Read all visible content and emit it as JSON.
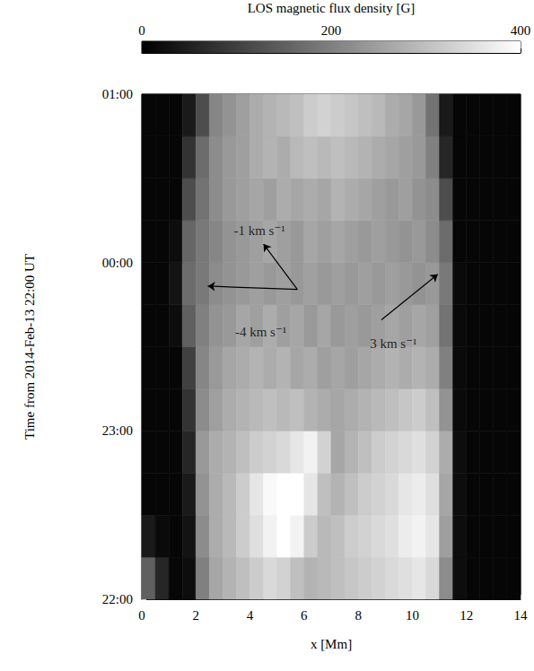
{
  "chart_data": {
    "type": "heatmap",
    "x_label": "x [Mm]",
    "y_label": "Time from 2014-Feb-13 22:00 UT",
    "xlim": [
      0,
      14
    ],
    "xticks": [
      0,
      2,
      4,
      6,
      8,
      10,
      12,
      14
    ],
    "ylim": [
      0,
      3
    ],
    "yticks": [
      {
        "value": 0,
        "label": "22:00"
      },
      {
        "value": 1,
        "label": "23:00"
      },
      {
        "value": 2,
        "label": "00:00"
      },
      {
        "value": 3,
        "label": "01:00"
      }
    ],
    "x_edges": [
      0,
      0.5,
      1,
      1.5,
      2,
      2.5,
      3,
      3.5,
      4,
      4.5,
      5,
      5.5,
      6,
      6.5,
      7,
      7.5,
      8,
      8.5,
      9,
      9.5,
      10,
      10.5,
      11,
      11.5,
      12,
      12.5,
      13,
      13.5,
      14
    ],
    "y_edges": [
      0,
      0.25,
      0.5,
      0.75,
      1,
      1.25,
      1.5,
      1.75,
      2,
      2.25,
      2.5,
      2.75,
      3
    ],
    "values": [
      [
        150,
        60,
        10,
        20,
        200,
        260,
        280,
        300,
        320,
        340,
        330,
        300,
        280,
        290,
        300,
        310,
        320,
        330,
        340,
        350,
        360,
        340,
        220,
        20,
        10,
        10,
        10,
        10
      ],
      [
        40,
        15,
        10,
        30,
        220,
        270,
        290,
        320,
        350,
        380,
        400,
        380,
        320,
        290,
        300,
        320,
        330,
        340,
        350,
        370,
        380,
        360,
        250,
        20,
        10,
        10,
        10,
        10
      ],
      [
        10,
        10,
        10,
        40,
        230,
        270,
        290,
        320,
        360,
        390,
        400,
        400,
        360,
        300,
        280,
        300,
        320,
        330,
        340,
        360,
        370,
        350,
        260,
        20,
        10,
        10,
        10,
        10
      ],
      [
        10,
        10,
        10,
        60,
        240,
        270,
        280,
        300,
        320,
        330,
        340,
        360,
        380,
        330,
        260,
        280,
        300,
        320,
        330,
        340,
        350,
        330,
        270,
        20,
        10,
        10,
        10,
        10
      ],
      [
        10,
        10,
        10,
        80,
        220,
        250,
        270,
        280,
        290,
        300,
        290,
        300,
        280,
        270,
        260,
        270,
        280,
        290,
        300,
        310,
        320,
        300,
        230,
        15,
        10,
        10,
        10,
        10
      ],
      [
        10,
        10,
        10,
        100,
        210,
        240,
        260,
        270,
        280,
        270,
        280,
        260,
        270,
        250,
        260,
        250,
        260,
        270,
        280,
        270,
        280,
        270,
        200,
        15,
        10,
        10,
        10,
        10
      ],
      [
        10,
        10,
        20,
        150,
        200,
        230,
        240,
        260,
        250,
        270,
        250,
        260,
        240,
        260,
        240,
        250,
        240,
        250,
        260,
        250,
        260,
        250,
        180,
        15,
        10,
        10,
        10,
        10
      ],
      [
        10,
        10,
        30,
        170,
        190,
        220,
        230,
        240,
        250,
        240,
        250,
        240,
        250,
        240,
        250,
        240,
        250,
        240,
        250,
        240,
        230,
        240,
        190,
        15,
        10,
        10,
        10,
        10
      ],
      [
        10,
        10,
        20,
        160,
        190,
        210,
        230,
        240,
        250,
        260,
        250,
        240,
        260,
        250,
        260,
        250,
        240,
        250,
        240,
        230,
        240,
        220,
        170,
        10,
        10,
        10,
        10,
        10
      ],
      [
        10,
        10,
        10,
        120,
        180,
        220,
        240,
        250,
        260,
        250,
        270,
        260,
        270,
        260,
        280,
        270,
        260,
        250,
        240,
        250,
        230,
        220,
        120,
        10,
        10,
        10,
        10,
        10
      ],
      [
        10,
        10,
        10,
        80,
        170,
        220,
        240,
        250,
        270,
        280,
        270,
        290,
        300,
        290,
        300,
        290,
        280,
        270,
        260,
        250,
        240,
        200,
        60,
        10,
        10,
        10,
        10,
        10
      ],
      [
        10,
        10,
        10,
        40,
        120,
        210,
        230,
        250,
        270,
        280,
        290,
        300,
        320,
        330,
        320,
        310,
        300,
        290,
        270,
        260,
        240,
        180,
        40,
        10,
        10,
        10,
        10,
        10
      ]
    ],
    "colorbar": {
      "label": "LOS magnetic flux density [G]",
      "range": [
        0,
        400
      ],
      "ticks": [
        0,
        200,
        400
      ],
      "colors": [
        "#000000",
        "#ffffff"
      ]
    },
    "annotations": [
      {
        "text": "-1 km s⁻¹",
        "x": 4.35,
        "y": 2.19
      },
      {
        "text": "-4 km s⁻¹",
        "x": 4.4,
        "y": 1.59
      },
      {
        "text": "3 km s⁻¹",
        "x": 9.3,
        "y": 1.52
      }
    ],
    "arrows": [
      {
        "from": [
          5.75,
          1.84
        ],
        "to": [
          4.5,
          2.11
        ]
      },
      {
        "from": [
          5.75,
          1.84
        ],
        "to": [
          2.44,
          1.86
        ]
      },
      {
        "from": [
          8.86,
          1.66
        ],
        "to": [
          10.94,
          1.93
        ]
      }
    ]
  }
}
